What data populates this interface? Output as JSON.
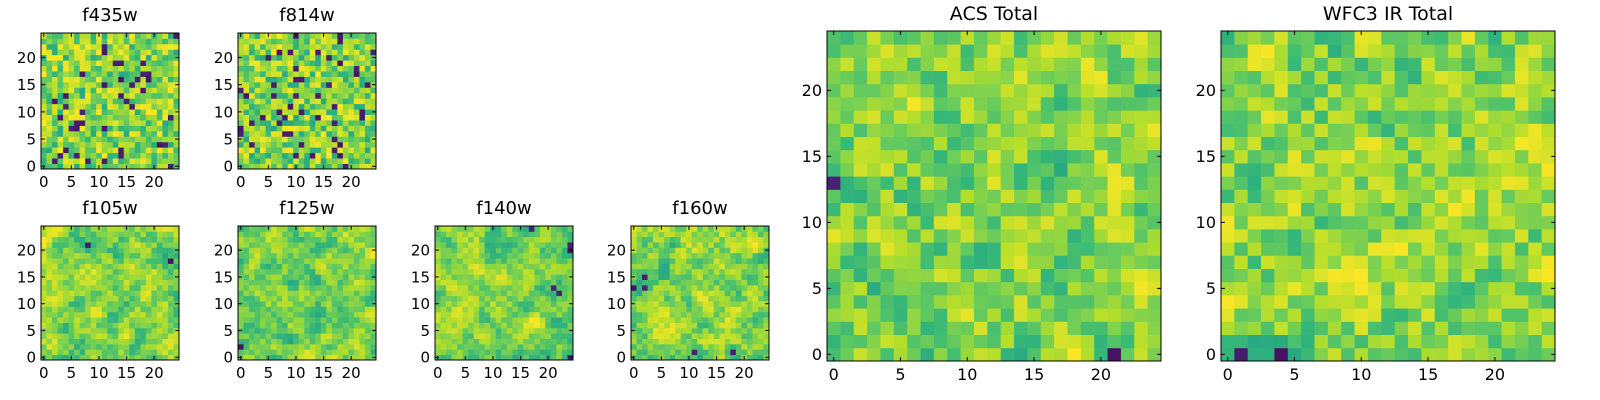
{
  "chart_data": [
    {
      "type": "heatmap",
      "title": "f435w",
      "grid": [
        25,
        25
      ],
      "xlim": [
        0,
        24
      ],
      "ylim": [
        0,
        24
      ],
      "xticks": [
        0,
        5,
        10,
        15,
        20
      ],
      "yticks": [
        0,
        5,
        10,
        15,
        20
      ],
      "colormap": "viridis",
      "seed": 11,
      "smooth": 0
    },
    {
      "type": "heatmap",
      "title": "f814w",
      "grid": [
        25,
        25
      ],
      "xlim": [
        0,
        24
      ],
      "ylim": [
        0,
        24
      ],
      "xticks": [
        0,
        5,
        10,
        15,
        20
      ],
      "yticks": [
        0,
        5,
        10,
        15,
        20
      ],
      "colormap": "viridis",
      "seed": 23,
      "smooth": 0
    },
    {
      "type": "heatmap",
      "title": "f105w",
      "grid": [
        25,
        25
      ],
      "xlim": [
        0,
        24
      ],
      "ylim": [
        0,
        24
      ],
      "xticks": [
        0,
        5,
        10,
        15,
        20
      ],
      "yticks": [
        0,
        5,
        10,
        15,
        20
      ],
      "colormap": "viridis",
      "seed": 37,
      "smooth": 2
    },
    {
      "type": "heatmap",
      "title": "f125w",
      "grid": [
        25,
        25
      ],
      "xlim": [
        0,
        24
      ],
      "ylim": [
        0,
        24
      ],
      "xticks": [
        0,
        5,
        10,
        15,
        20
      ],
      "yticks": [
        0,
        5,
        10,
        15,
        20
      ],
      "colormap": "viridis",
      "seed": 41,
      "smooth": 2
    },
    {
      "type": "heatmap",
      "title": "f140w",
      "grid": [
        25,
        25
      ],
      "xlim": [
        0,
        24
      ],
      "ylim": [
        0,
        24
      ],
      "xticks": [
        0,
        5,
        10,
        15,
        20
      ],
      "yticks": [
        0,
        5,
        10,
        15,
        20
      ],
      "colormap": "viridis",
      "seed": 53,
      "smooth": 2
    },
    {
      "type": "heatmap",
      "title": "f160w",
      "grid": [
        25,
        25
      ],
      "xlim": [
        0,
        24
      ],
      "ylim": [
        0,
        24
      ],
      "xticks": [
        0,
        5,
        10,
        15,
        20
      ],
      "yticks": [
        0,
        5,
        10,
        15,
        20
      ],
      "colormap": "viridis",
      "seed": 67,
      "smooth": 2
    },
    {
      "type": "heatmap",
      "title": "ACS Total",
      "grid": [
        25,
        25
      ],
      "xlim": [
        0,
        24
      ],
      "ylim": [
        0,
        24
      ],
      "xticks": [
        0,
        5,
        10,
        15,
        20
      ],
      "yticks": [
        0,
        5,
        10,
        15,
        20
      ],
      "colormap": "viridis",
      "seed": 79,
      "smooth": 1
    },
    {
      "type": "heatmap",
      "title": "WFC3 IR Total",
      "grid": [
        25,
        25
      ],
      "xlim": [
        0,
        24
      ],
      "ylim": [
        0,
        24
      ],
      "xticks": [
        0,
        5,
        10,
        15,
        20
      ],
      "yticks": [
        0,
        5,
        10,
        15,
        20
      ],
      "colormap": "viridis",
      "seed": 97,
      "smooth": 1
    }
  ]
}
